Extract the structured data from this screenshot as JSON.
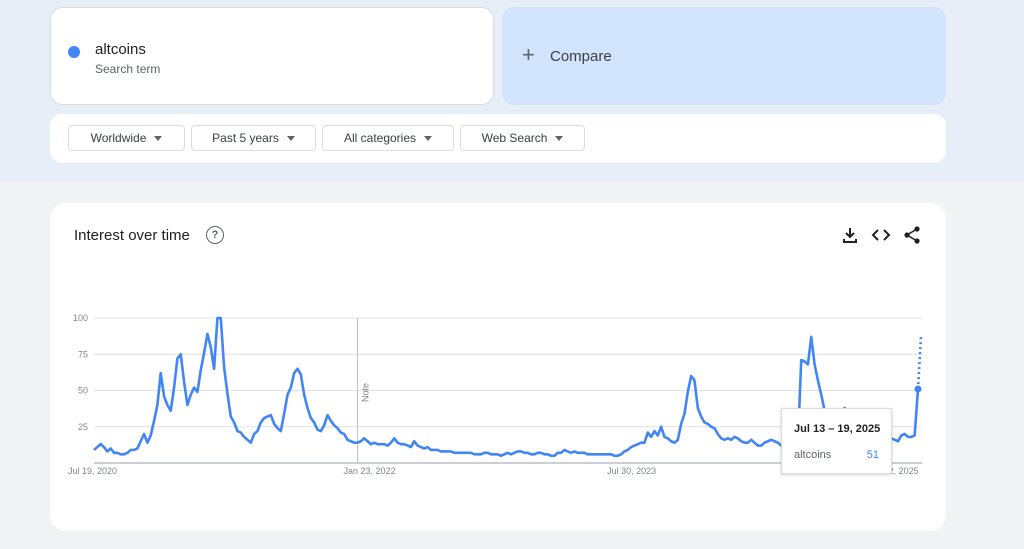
{
  "search": {
    "term": "altcoins",
    "term_sub": "Search term",
    "term_color": "#4285f4",
    "compare_label": "Compare",
    "compare_icon": "plus-icon"
  },
  "filters": [
    {
      "label": "Worldwide"
    },
    {
      "label": "Past 5 years"
    },
    {
      "label": "All categories"
    },
    {
      "label": "Web Search"
    }
  ],
  "chart_section": {
    "title": "Interest over time",
    "help_icon": "help-icon",
    "tools": [
      "download-icon",
      "embed-code-icon",
      "share-icon"
    ]
  },
  "tooltip": {
    "date": "Jul 13 – 19, 2025",
    "term": "altcoins",
    "value": "51"
  },
  "chart_data": {
    "type": "line",
    "title": "Interest over time",
    "xlabel": "",
    "ylabel": "",
    "ylim": [
      0,
      100
    ],
    "yticks": [
      100,
      75,
      50,
      25
    ],
    "x_ticks": [
      {
        "label": "Jul 19, 2020",
        "week": 0
      },
      {
        "label": "Jan 23, 2022",
        "week": 79
      },
      {
        "label": "Jul 30, 2023",
        "week": 158
      },
      {
        "label": "Feb 2, 2025",
        "week": 237
      }
    ],
    "note_label": "Note",
    "note_week": 79,
    "grid": true,
    "series": [
      {
        "name": "altcoins",
        "color": "#4285f4",
        "values": [
          9,
          11,
          13,
          11,
          8,
          10,
          7,
          7,
          6,
          6,
          7,
          9,
          9,
          10,
          15,
          20,
          14,
          19,
          29,
          40,
          62,
          46,
          40,
          36,
          52,
          72,
          75,
          56,
          40,
          47,
          52,
          49,
          64,
          76,
          89,
          80,
          65,
          100,
          100,
          66,
          48,
          32,
          28,
          22,
          21,
          18,
          16,
          14,
          20,
          22,
          28,
          31,
          32,
          33,
          27,
          24,
          22,
          34,
          47,
          52,
          62,
          65,
          61,
          47,
          38,
          31,
          28,
          23,
          22,
          26,
          33,
          29,
          26,
          24,
          21,
          20,
          16,
          15,
          14,
          14,
          15,
          17,
          15,
          13,
          14,
          13,
          13,
          13,
          12,
          14,
          17,
          14,
          13,
          13,
          12,
          11,
          15,
          12,
          11,
          10,
          11,
          9,
          9,
          9,
          8,
          8,
          8,
          8,
          7,
          7,
          7,
          7,
          7,
          7,
          6,
          6,
          6,
          7,
          7,
          6,
          6,
          6,
          5,
          6,
          7,
          6,
          7,
          8,
          8,
          7,
          7,
          6,
          6,
          7,
          7,
          6,
          6,
          5,
          5,
          7,
          7,
          9,
          8,
          7,
          8,
          7,
          7,
          7,
          6,
          6,
          6,
          6,
          6,
          6,
          6,
          6,
          5,
          5,
          6,
          8,
          9,
          11,
          12,
          13,
          14,
          14,
          21,
          18,
          22,
          19,
          25,
          18,
          17,
          15,
          14,
          16,
          27,
          34,
          49,
          60,
          57,
          38,
          32,
          28,
          27,
          25,
          24,
          20,
          17,
          16,
          17,
          16,
          18,
          17,
          15,
          14,
          14,
          16,
          14,
          12,
          12,
          14,
          15,
          16,
          15,
          14,
          12,
          11,
          10,
          11,
          12,
          14,
          71,
          70,
          68,
          87,
          68,
          57,
          47,
          36,
          33,
          29,
          27,
          26,
          30,
          38,
          35,
          33,
          30,
          27,
          22,
          19,
          17,
          15,
          14,
          13,
          13,
          14,
          16,
          17,
          16,
          15,
          19,
          20,
          18,
          18,
          19,
          51
        ]
      }
    ],
    "projection_to": 87
  }
}
